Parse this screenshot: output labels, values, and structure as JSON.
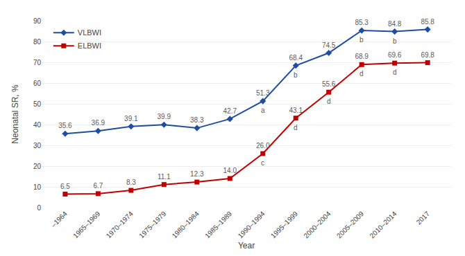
{
  "chart_data": {
    "type": "line",
    "categories": [
      "–1964",
      "1965–1969",
      "1970–1974",
      "1975–1979",
      "1980–1984",
      "1985–1989",
      "1990–1994",
      "1995–1999",
      "2000–2004",
      "2005–2009",
      "2010–2014",
      "2017"
    ],
    "series": [
      {
        "name": "VLBWI",
        "color": "#1f4e9e",
        "marker": "diamond",
        "values": [
          35.6,
          36.9,
          39.1,
          39.9,
          38.3,
          42.7,
          51.3,
          68.4,
          74.5,
          85.3,
          84.8,
          85.8
        ],
        "value_labels": [
          "35.6",
          "36.9",
          "39.1",
          "39.9",
          "38.3",
          "42.7",
          "51.3",
          "68.4",
          "74.5",
          "85.3",
          "84.8",
          "85.8"
        ]
      },
      {
        "name": "ELBWI",
        "color": "#c00000",
        "marker": "square",
        "values": [
          6.5,
          6.7,
          8.3,
          11.1,
          12.3,
          14,
          26,
          43.1,
          55.6,
          68.9,
          69.6,
          69.8
        ],
        "value_labels": [
          "6.5",
          "6.7",
          "8.3",
          "11.1",
          "12.3",
          "14.0",
          "26.0",
          "43.1",
          "55.6",
          "68.9",
          "69.6",
          "69.8"
        ]
      }
    ],
    "annotations": [
      {
        "text": "a",
        "series": "VLBWI",
        "category": "1990–1994"
      },
      {
        "text": "b",
        "series": "VLBWI",
        "category": "1995–1999"
      },
      {
        "text": "b",
        "series": "VLBWI",
        "category": "2005–2009"
      },
      {
        "text": "b",
        "series": "VLBWI",
        "category": "2010–2014"
      },
      {
        "text": "c",
        "series": "ELBWI",
        "category": "1990–1994"
      },
      {
        "text": "d",
        "series": "ELBWI",
        "category": "1995–1999"
      },
      {
        "text": "d",
        "series": "ELBWI",
        "category": "2000–2004"
      },
      {
        "text": "d",
        "series": "ELBWI",
        "category": "2005–2009"
      },
      {
        "text": "d",
        "series": "ELBWI",
        "category": "2010–2014"
      }
    ],
    "xlabel": "Year",
    "ylabel": "Neonatal SR, %",
    "ylim": [
      0,
      90
    ],
    "yticks": [
      0,
      10,
      20,
      30,
      40,
      50,
      60,
      70,
      80,
      90
    ],
    "grid": true,
    "legend": "upper left",
    "data_labels": true
  }
}
